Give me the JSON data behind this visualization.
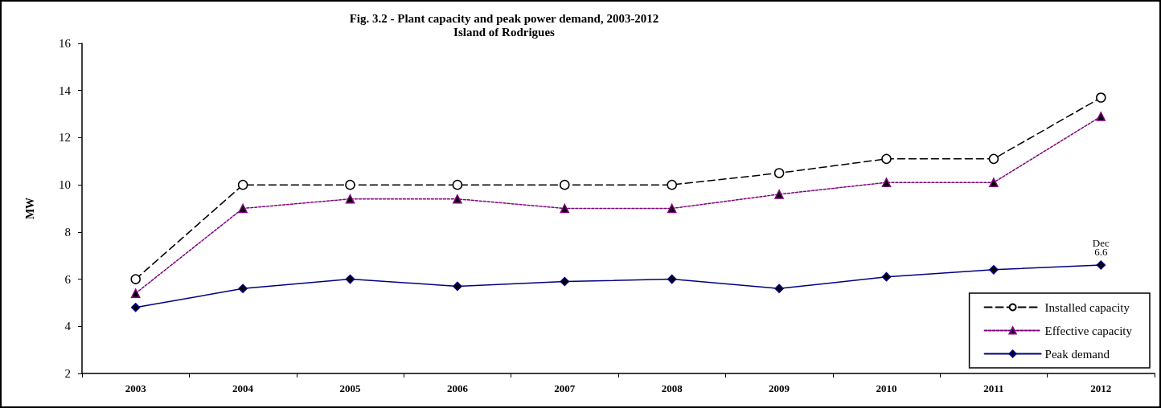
{
  "chart_data": {
    "type": "line",
    "title": "Fig. 3.2 - Plant capacity and peak power demand, 2003-2012",
    "subtitle": "Island of Rodrigues",
    "ylabel": "MW",
    "categories": [
      "2003",
      "2004",
      "2005",
      "2006",
      "2007",
      "2008",
      "2009",
      "2010",
      "2011",
      "2012"
    ],
    "series": [
      {
        "name": "Installed capacity",
        "color": "#000000",
        "marker": "circle",
        "line_style": "dashed",
        "values": [
          6.0,
          10.0,
          10.0,
          10.0,
          10.0,
          10.0,
          10.5,
          11.1,
          11.1,
          13.7
        ]
      },
      {
        "name": "Effective capacity",
        "color": "#800080",
        "marker": "triangle",
        "line_style": "dotted",
        "values": [
          5.4,
          9.0,
          9.4,
          9.4,
          9.0,
          9.0,
          9.6,
          10.1,
          10.1,
          12.9
        ]
      },
      {
        "name": "Peak demand",
        "color": "#000080",
        "marker": "diamond",
        "line_style": "solid",
        "values": [
          4.8,
          5.6,
          6.0,
          5.7,
          5.9,
          6.0,
          5.6,
          6.1,
          6.4,
          6.6
        ],
        "value_labels": [
          null,
          null,
          null,
          null,
          null,
          null,
          null,
          null,
          null,
          "6.6"
        ]
      }
    ],
    "annotations": [
      {
        "text": "Dec",
        "x": "2012",
        "y": 6.6
      }
    ],
    "ylim": [
      2,
      16
    ],
    "yticks": [
      2,
      4,
      6,
      8,
      10,
      12,
      14,
      16
    ],
    "grid": false,
    "legend": "bottom right"
  }
}
